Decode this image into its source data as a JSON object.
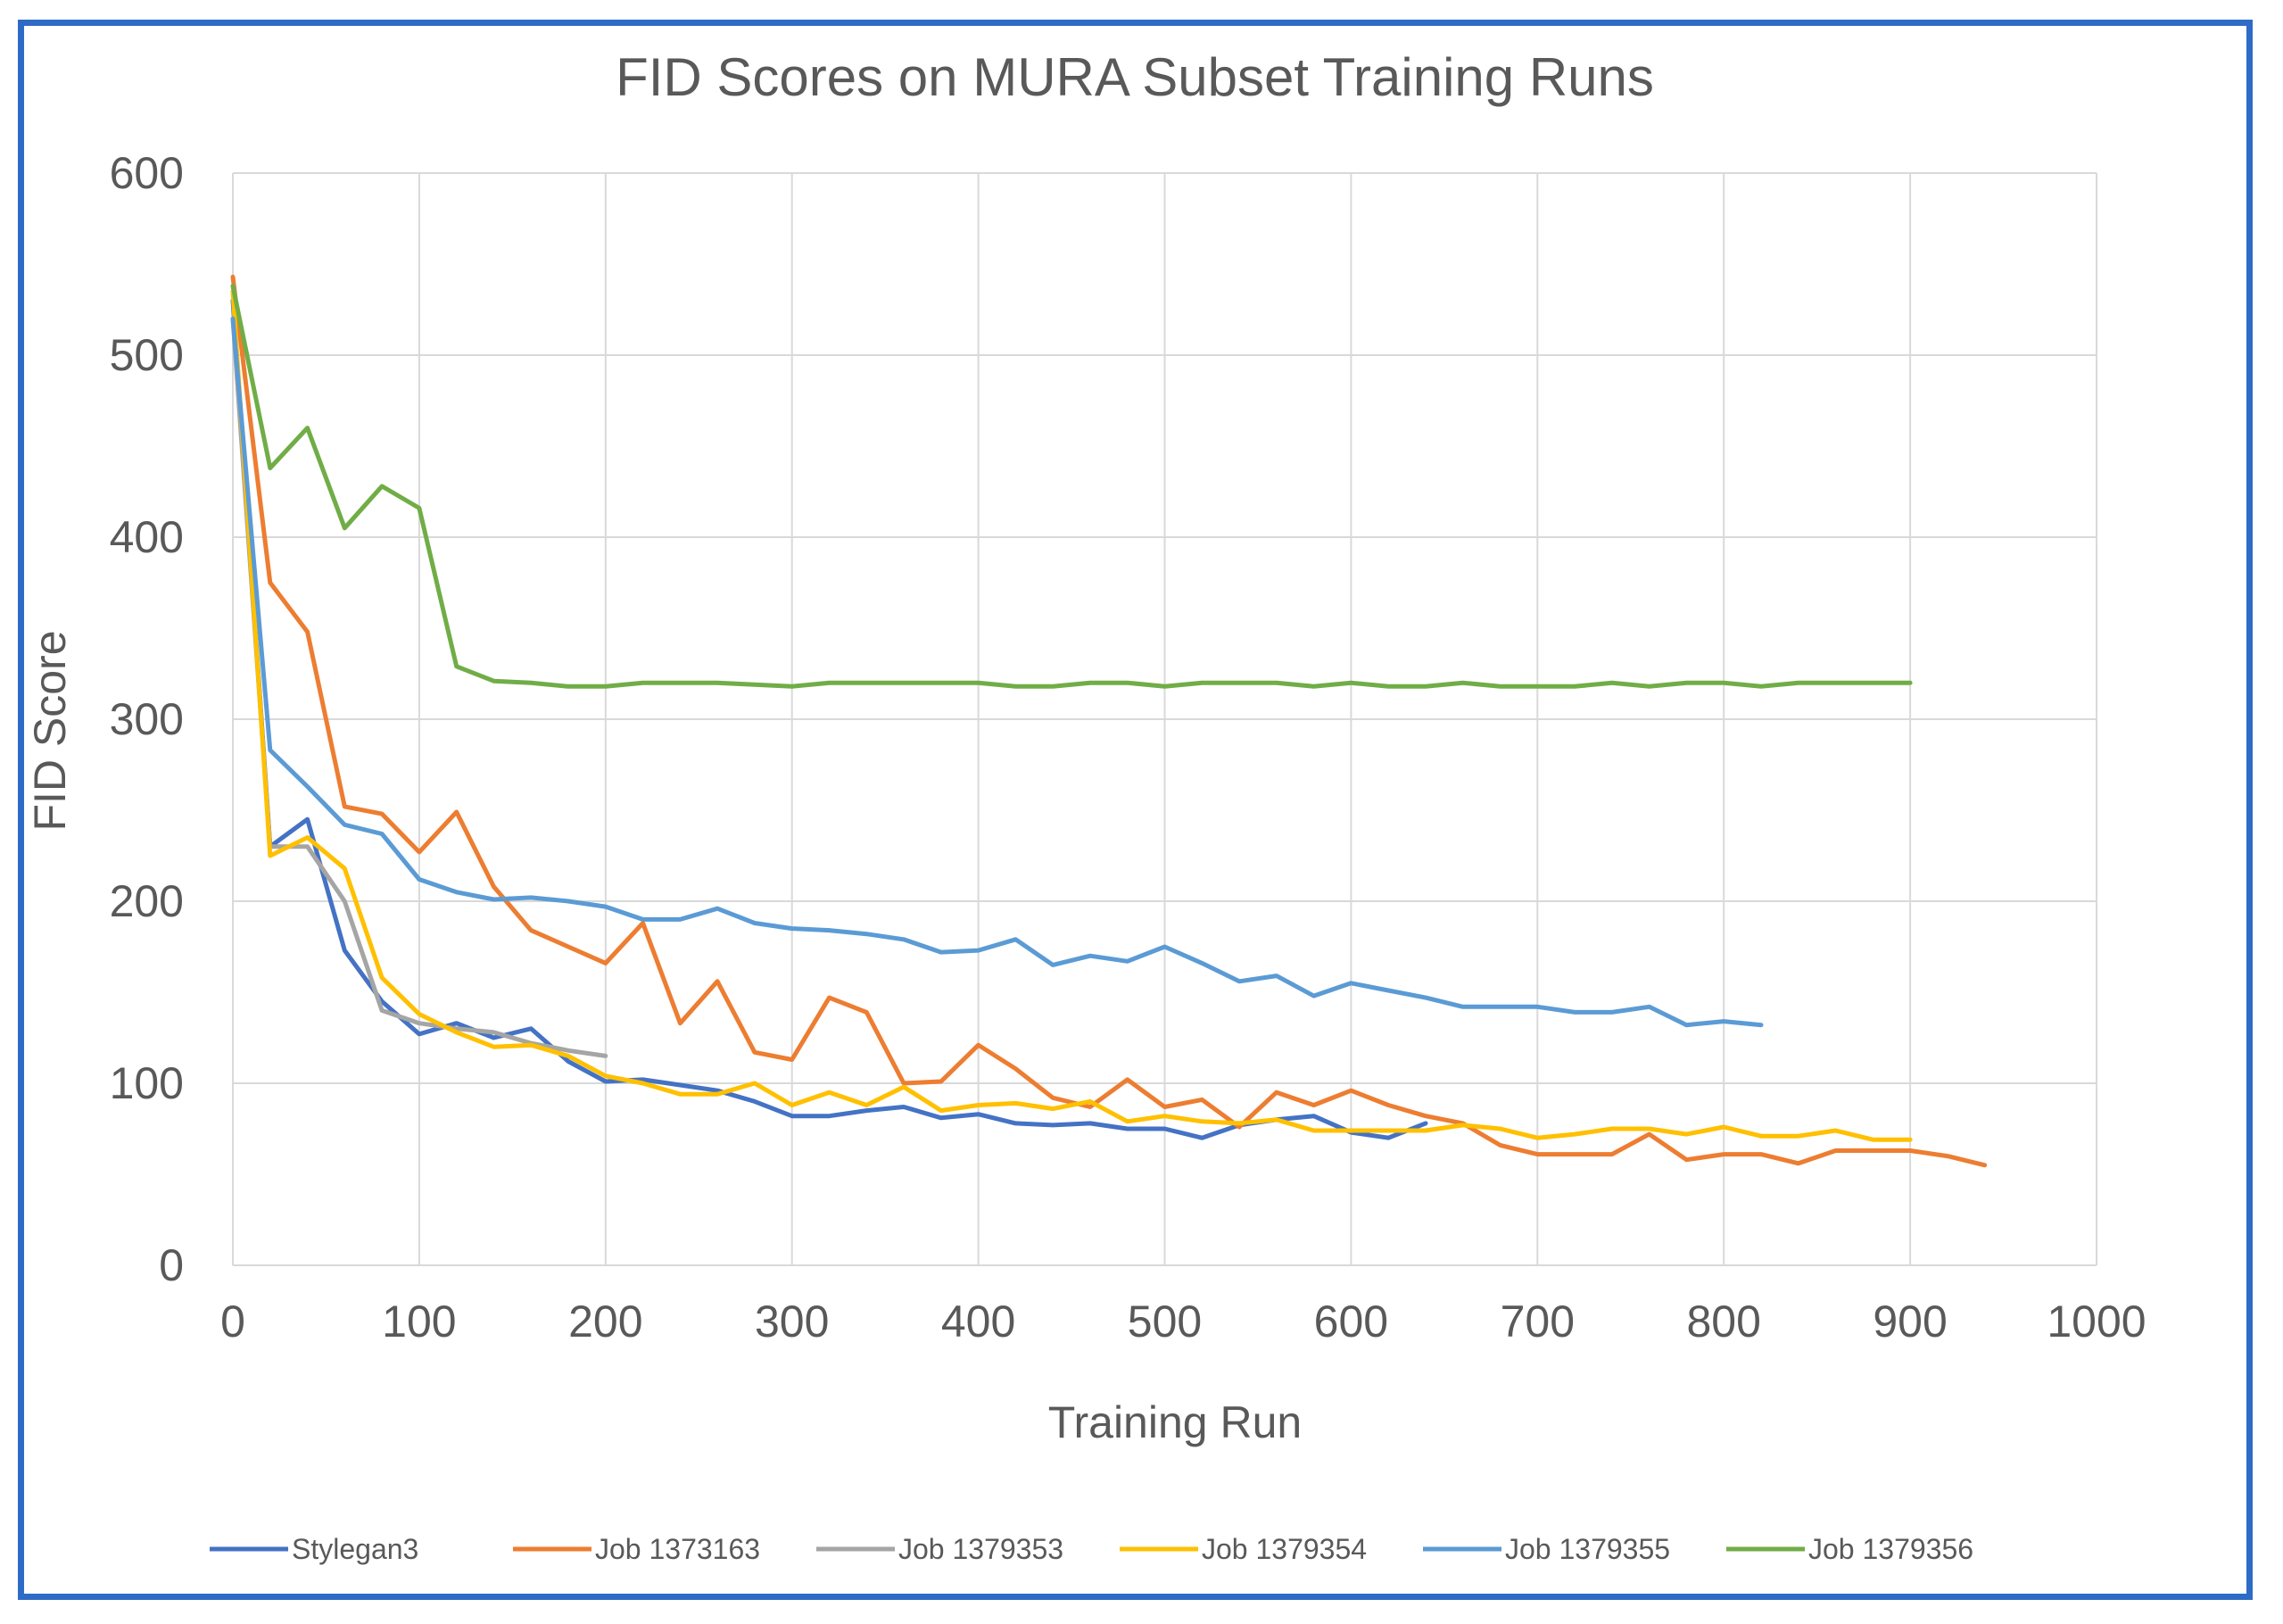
{
  "chart_data": {
    "type": "line",
    "title": "FID Scores on MURA Subset Training Runs",
    "xlabel": "Training Run",
    "ylabel": "FID Score",
    "xlim": [
      0,
      1000
    ],
    "ylim": [
      0,
      600
    ],
    "xticks": [
      "0",
      "100",
      "200",
      "300",
      "400",
      "500",
      "600",
      "700",
      "800",
      "900",
      "1000"
    ],
    "yticks": [
      "0",
      "100",
      "200",
      "300",
      "400",
      "500",
      "600"
    ],
    "grid": true,
    "legend_position": "bottom",
    "series": [
      {
        "name": "Stylegan3",
        "color": "#4472C4",
        "x": [
          0,
          20,
          40,
          60,
          80,
          100,
          120,
          140,
          160,
          180,
          200,
          220,
          240,
          260,
          280,
          300,
          320,
          340,
          360,
          380,
          400,
          420,
          440,
          460,
          480,
          500,
          520,
          540,
          560,
          580,
          600,
          620,
          640
        ],
        "values": [
          530,
          230,
          245,
          173,
          145,
          127,
          133,
          125,
          130,
          112,
          101,
          102,
          99,
          96,
          90,
          82,
          82,
          85,
          87,
          81,
          83,
          78,
          77,
          78,
          75,
          75,
          70,
          77,
          80,
          82,
          73,
          70,
          78
        ]
      },
      {
        "name": "Job 1373163",
        "color": "#ED7D31",
        "x": [
          0,
          20,
          40,
          60,
          80,
          100,
          120,
          140,
          160,
          180,
          200,
          220,
          240,
          260,
          280,
          300,
          320,
          340,
          360,
          380,
          400,
          420,
          440,
          460,
          480,
          500,
          520,
          540,
          560,
          580,
          600,
          620,
          640,
          660,
          680,
          700,
          720,
          740,
          760,
          780,
          800,
          820,
          840,
          860,
          880,
          900,
          920,
          940
        ],
        "values": [
          543,
          375,
          348,
          252,
          248,
          227,
          249,
          208,
          184,
          175,
          166,
          188,
          133,
          156,
          117,
          113,
          147,
          139,
          100,
          101,
          121,
          108,
          92,
          87,
          102,
          87,
          91,
          76,
          95,
          88,
          96,
          88,
          82,
          78,
          66,
          61,
          61,
          61,
          72,
          58,
          61,
          61,
          56,
          63,
          63,
          63,
          60,
          55
        ]
      },
      {
        "name": "Job 1379353",
        "color": "#A5A5A5",
        "x": [
          0,
          20,
          40,
          60,
          80,
          100,
          120,
          140,
          160,
          180,
          200
        ],
        "values": [
          520,
          230,
          230,
          200,
          140,
          133,
          130,
          128,
          122,
          118,
          115
        ]
      },
      {
        "name": "Job 1379354",
        "color": "#FFC000",
        "x": [
          0,
          20,
          40,
          60,
          80,
          100,
          120,
          140,
          160,
          180,
          200,
          220,
          240,
          260,
          280,
          300,
          320,
          340,
          360,
          380,
          400,
          420,
          440,
          460,
          480,
          500,
          520,
          540,
          560,
          580,
          600,
          620,
          640,
          660,
          680,
          700,
          720,
          740,
          760,
          780,
          800,
          820,
          840,
          860,
          880,
          900
        ],
        "values": [
          535,
          225,
          235,
          218,
          158,
          138,
          128,
          120,
          121,
          115,
          104,
          100,
          94,
          94,
          100,
          88,
          95,
          88,
          98,
          85,
          88,
          89,
          86,
          90,
          79,
          82,
          79,
          78,
          80,
          74,
          74,
          74,
          74,
          77,
          75,
          70,
          72,
          75,
          75,
          72,
          76,
          71,
          71,
          74,
          69,
          69
        ]
      },
      {
        "name": "Job 1379355",
        "color": "#5B9BD5",
        "x": [
          0,
          20,
          40,
          60,
          80,
          100,
          120,
          140,
          160,
          180,
          200,
          220,
          240,
          260,
          280,
          300,
          320,
          340,
          360,
          380,
          400,
          420,
          440,
          460,
          480,
          500,
          520,
          540,
          560,
          580,
          600,
          620,
          640,
          660,
          680,
          700,
          720,
          740,
          760,
          780,
          800,
          820
        ],
        "values": [
          520,
          283,
          263,
          242,
          237,
          212,
          205,
          201,
          202,
          200,
          197,
          190,
          190,
          196,
          188,
          185,
          184,
          182,
          179,
          172,
          173,
          179,
          165,
          170,
          167,
          175,
          166,
          156,
          159,
          148,
          155,
          151,
          147,
          142,
          142,
          142,
          139,
          139,
          142,
          132,
          134,
          132
        ]
      },
      {
        "name": "Job 1379356",
        "color": "#70AD47",
        "x": [
          0,
          20,
          40,
          60,
          80,
          100,
          120,
          140,
          160,
          180,
          200,
          220,
          240,
          260,
          280,
          300,
          320,
          340,
          360,
          380,
          400,
          420,
          440,
          460,
          480,
          500,
          520,
          540,
          560,
          580,
          600,
          620,
          640,
          660,
          680,
          700,
          720,
          740,
          760,
          780,
          800,
          820,
          840,
          860,
          880,
          900
        ],
        "values": [
          538,
          438,
          460,
          405,
          428,
          416,
          329,
          321,
          320,
          318,
          318,
          320,
          320,
          320,
          319,
          318,
          320,
          320,
          320,
          320,
          320,
          318,
          318,
          320,
          320,
          318,
          320,
          320,
          320,
          318,
          320,
          318,
          318,
          320,
          318,
          318,
          318,
          320,
          318,
          320,
          320,
          318,
          320,
          320,
          320,
          320
        ]
      }
    ]
  }
}
